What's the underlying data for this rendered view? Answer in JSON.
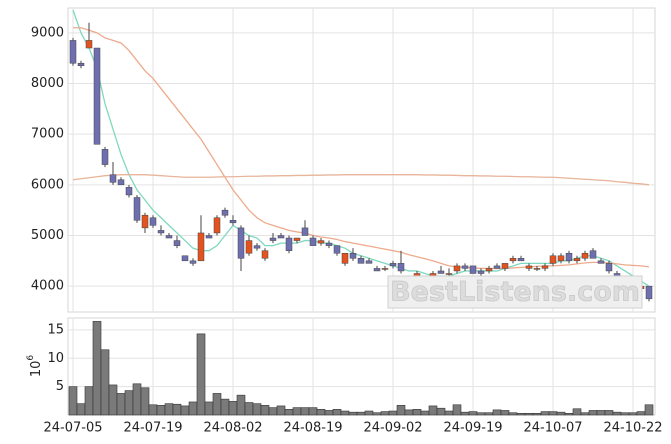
{
  "chart_data": {
    "type": "candlestick",
    "categories": [
      "24-07-05",
      null,
      null,
      null,
      null,
      null,
      null,
      null,
      null,
      null,
      "24-07-19",
      null,
      null,
      null,
      null,
      null,
      null,
      null,
      null,
      null,
      "24-08-02",
      null,
      null,
      null,
      null,
      null,
      null,
      null,
      null,
      null,
      "24-08-19",
      null,
      null,
      null,
      null,
      null,
      null,
      null,
      null,
      null,
      "24-09-02",
      null,
      null,
      null,
      null,
      null,
      null,
      null,
      null,
      null,
      "24-09-19",
      null,
      null,
      null,
      null,
      null,
      null,
      null,
      null,
      null,
      "24-10-07",
      null,
      null,
      null,
      null,
      null,
      null,
      null,
      null,
      null,
      "24-10-22",
      null,
      null
    ],
    "open": [
      8850,
      8400,
      8700,
      8700,
      6700,
      6200,
      6100,
      5950,
      5750,
      5150,
      5350,
      5100,
      5000,
      4900,
      4600,
      4500,
      4500,
      5000,
      5050,
      5500,
      5300,
      5150,
      4650,
      4800,
      4550,
      4950,
      5000,
      4950,
      4900,
      5150,
      4950,
      4850,
      4850,
      4800,
      4450,
      4650,
      4550,
      4500,
      4350,
      4350,
      4450,
      4450,
      4100,
      4150,
      4150,
      3900,
      4300,
      4250,
      4300,
      4400,
      4400,
      4300,
      4300,
      4400,
      4350,
      4500,
      4550,
      4350,
      4350,
      4350,
      4450,
      4500,
      4650,
      4500,
      4550,
      4700,
      4500,
      4450,
      4250,
      4150,
      4100,
      3950,
      4000
    ],
    "high": [
      8900,
      8450,
      9200,
      8700,
      6750,
      6450,
      6150,
      6000,
      5800,
      5450,
      5400,
      5200,
      5050,
      5000,
      4600,
      4550,
      5400,
      5050,
      5400,
      5550,
      5400,
      5200,
      5000,
      4850,
      4750,
      5050,
      5050,
      5000,
      4950,
      5300,
      5000,
      4950,
      4900,
      4800,
      4650,
      4750,
      4600,
      4550,
      4400,
      4400,
      4500,
      4700,
      4200,
      4300,
      4200,
      4300,
      4400,
      4350,
      4450,
      4450,
      4400,
      4350,
      4400,
      4450,
      4450,
      4600,
      4600,
      4450,
      4400,
      4450,
      4650,
      4650,
      4700,
      4600,
      4700,
      4750,
      4550,
      4500,
      4300,
      4200,
      4150,
      4050,
      4000
    ],
    "low": [
      8350,
      8300,
      8700,
      6800,
      6350,
      6000,
      6000,
      5750,
      5250,
      5050,
      5150,
      5000,
      4950,
      4750,
      4500,
      4400,
      4500,
      4950,
      5000,
      5350,
      5200,
      4300,
      4600,
      4700,
      4500,
      4850,
      4950,
      4650,
      4850,
      5000,
      4800,
      4800,
      4750,
      4600,
      4400,
      4500,
      4450,
      4450,
      4300,
      4300,
      4350,
      4250,
      4050,
      4050,
      4050,
      3900,
      4250,
      4200,
      4250,
      4300,
      4250,
      4200,
      4250,
      4350,
      4300,
      4450,
      4500,
      4300,
      4300,
      4300,
      4400,
      4450,
      4450,
      4450,
      4500,
      4550,
      4450,
      4250,
      4100,
      4100,
      4000,
      3950,
      3700
    ],
    "close": [
      8400,
      8350,
      8850,
      6800,
      6400,
      6050,
      6000,
      5800,
      5300,
      5400,
      5200,
      5050,
      4950,
      4800,
      4500,
      4450,
      5050,
      4950,
      5350,
      5400,
      5250,
      4550,
      4900,
      4750,
      4700,
      4900,
      4950,
      4700,
      4950,
      5000,
      4800,
      4900,
      4800,
      4650,
      4650,
      4550,
      4450,
      4450,
      4300,
      4350,
      4400,
      4300,
      4100,
      4250,
      4100,
      4250,
      4250,
      4250,
      4400,
      4350,
      4250,
      4250,
      4350,
      4350,
      4450,
      4550,
      4500,
      4400,
      4350,
      4400,
      4600,
      4600,
      4500,
      4550,
      4650,
      4550,
      4450,
      4300,
      4150,
      4200,
      4050,
      4000,
      3750
    ],
    "volume": [
      5,
      2,
      5,
      16.5,
      11.5,
      5.3,
      3.8,
      4.3,
      5.5,
      4.8,
      1.8,
      1.7,
      2,
      1.9,
      1.6,
      2.3,
      14.3,
      2.3,
      3.8,
      2.8,
      2.4,
      3.5,
      2.2,
      2,
      1.7,
      1.3,
      1.6,
      1,
      1.3,
      1.3,
      1.3,
      1,
      0.8,
      1,
      0.7,
      0.5,
      0.5,
      0.7,
      0.4,
      0.6,
      0.7,
      1.7,
      0.9,
      1,
      0.7,
      1.6,
      1.2,
      0.7,
      1.8,
      0.5,
      0.6,
      0.4,
      0.4,
      0.9,
      0.8,
      0.4,
      0.3,
      0.3,
      0.3,
      0.6,
      0.6,
      0.5,
      0.3,
      1.1,
      0.4,
      0.8,
      0.8,
      0.8,
      0.5,
      0.4,
      0.4,
      0.6,
      1.8
    ],
    "series": [
      {
        "color": "#7fd8bf",
        "values": [
          9450,
          9000,
          8700,
          8300,
          7600,
          7100,
          6600,
          6200,
          5900,
          5700,
          5500,
          5350,
          5200,
          5050,
          4900,
          4750,
          4700,
          4700,
          4800,
          5000,
          5200,
          5100,
          5000,
          4950,
          4800,
          4800,
          4850,
          4850,
          4850,
          4900,
          4900,
          4850,
          4850,
          4800,
          4750,
          4650,
          4600,
          4550,
          4500,
          4450,
          4400,
          4350,
          4300,
          4300,
          4250,
          4200,
          4200,
          4200,
          4250,
          4300,
          4300,
          4300,
          4300,
          4300,
          4350,
          4400,
          4450,
          4450,
          4450,
          4450,
          4450,
          4500,
          4500,
          4550,
          4600,
          4600,
          4550,
          4500,
          4400,
          4300,
          4200,
          4100,
          4000
        ]
      },
      {
        "color": "#eeaa8c",
        "values": [
          9100,
          9100,
          9050,
          9000,
          8900,
          8850,
          8800,
          8650,
          8450,
          8250,
          8100,
          7900,
          7700,
          7500,
          7300,
          7100,
          6900,
          6650,
          6400,
          6150,
          5900,
          5700,
          5500,
          5350,
          5250,
          5200,
          5150,
          5100,
          5070,
          5050,
          5000,
          4970,
          4950,
          4920,
          4880,
          4850,
          4820,
          4790,
          4760,
          4730,
          4700,
          4670,
          4620,
          4580,
          4540,
          4500,
          4450,
          4400,
          4380,
          4370,
          4360,
          4350,
          4350,
          4350,
          4350,
          4360,
          4370,
          4380,
          4390,
          4400,
          4400,
          4410,
          4420,
          4440,
          4460,
          4470,
          4470,
          4460,
          4440,
          4420,
          4410,
          4400,
          4380
        ]
      },
      {
        "color": "#e8b49a",
        "values": [
          6100,
          6120,
          6140,
          6160,
          6180,
          6190,
          6200,
          6200,
          6200,
          6200,
          6190,
          6180,
          6170,
          6160,
          6150,
          6150,
          6150,
          6150,
          6155,
          6160,
          6160,
          6165,
          6170,
          6170,
          6175,
          6175,
          6180,
          6180,
          6185,
          6185,
          6190,
          6190,
          6195,
          6195,
          6200,
          6200,
          6200,
          6200,
          6200,
          6200,
          6200,
          6200,
          6200,
          6200,
          6195,
          6195,
          6190,
          6190,
          6185,
          6180,
          6180,
          6175,
          6175,
          6170,
          6170,
          6165,
          6160,
          6160,
          6155,
          6150,
          6150,
          6140,
          6130,
          6120,
          6110,
          6100,
          6090,
          6080,
          6060,
          6050,
          6030,
          6020,
          6000
        ]
      }
    ],
    "up_color": "#e2531f",
    "down_color": "#6d6fae",
    "volume_color": "#7a7a7a",
    "ylim": [
      3490,
      9490
    ],
    "yticks": [
      4000,
      5000,
      6000,
      7000,
      8000,
      9000
    ],
    "volume_ylim": [
      0,
      17.1
    ],
    "volume_yticks": [
      5,
      10,
      15
    ],
    "volume_unit_base": "10",
    "volume_unit_exponent": "6",
    "watermark": "BestListens.com",
    "grid": true
  }
}
